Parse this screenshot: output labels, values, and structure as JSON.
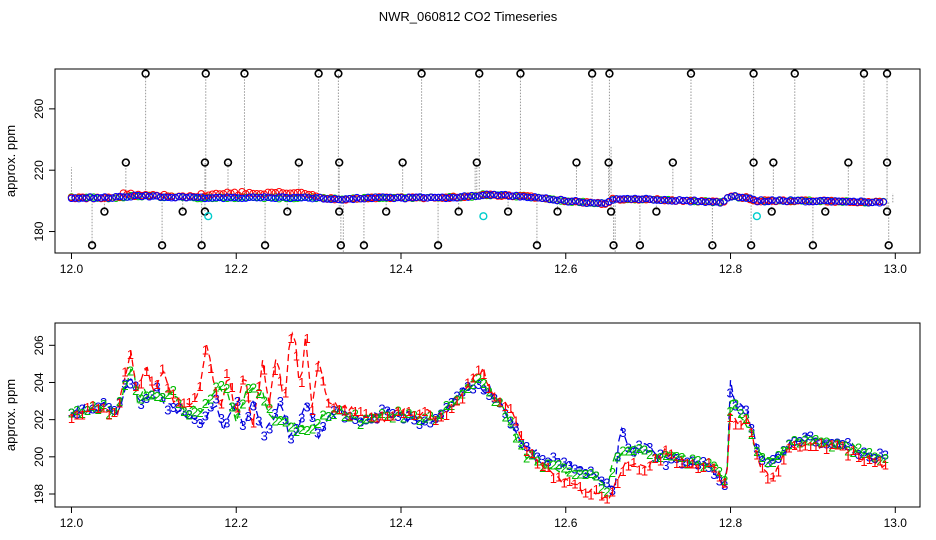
{
  "title": "NWR_060812  CO2 Timeseries",
  "chart_data": [
    {
      "type": "scatter",
      "name": "top-panel",
      "xlabel": "",
      "ylabel": "approx. ppm",
      "xlim": [
        11.98,
        13.03
      ],
      "ylim": [
        166,
        286
      ],
      "xticks": [
        12.0,
        12.2,
        12.4,
        12.6,
        12.8,
        13.0
      ],
      "xtick_labels": [
        "12.0",
        "12.2",
        "12.4",
        "12.6",
        "12.8",
        "13.0"
      ],
      "yticks": [
        180,
        220,
        260
      ],
      "ytick_labels": [
        "180",
        "220",
        "260"
      ],
      "colors": {
        "series1": "#ff0000",
        "series2": "#00cc00",
        "series3": "#0000ff",
        "spike": "#000000",
        "cyan": "#00cccc",
        "vline": "#999999"
      },
      "baseline": {
        "x": [
          12.0,
          12.05,
          12.07,
          12.1,
          12.15,
          12.2,
          12.25,
          12.3,
          12.33,
          12.36,
          12.4,
          12.45,
          12.49,
          12.5,
          12.55,
          12.6,
          12.65,
          12.655,
          12.7,
          12.75,
          12.79,
          12.8,
          12.82,
          12.83,
          12.9,
          12.99
        ],
        "y": [
          202,
          202,
          203,
          203,
          202,
          202,
          202,
          202,
          201,
          202,
          202,
          202,
          203,
          204,
          203,
          200,
          198,
          201,
          201,
          200,
          199,
          203,
          202,
          200,
          200,
          199
        ]
      },
      "series1_bumps": {
        "x": [
          12.07,
          12.1,
          12.14,
          12.17,
          12.2,
          12.23,
          12.26,
          12.29
        ],
        "y": [
          204,
          204,
          203,
          205,
          205,
          205,
          206,
          204
        ]
      },
      "spikes_high": {
        "x": [
          12.09,
          12.163,
          12.21,
          12.3,
          12.324,
          12.425,
          12.495,
          12.545,
          12.632,
          12.653,
          12.752,
          12.828,
          12.878,
          12.962,
          12.99
        ],
        "y": [
          283,
          283,
          283,
          283,
          283,
          283,
          283,
          283,
          283,
          283,
          283,
          283,
          283,
          283,
          283
        ]
      },
      "spikes_mid": {
        "x": [
          12.066,
          12.162,
          12.19,
          12.276,
          12.325,
          12.402,
          12.492,
          12.613,
          12.652,
          12.73,
          12.828,
          12.852,
          12.943,
          12.99
        ],
        "y": [
          225,
          225,
          225,
          225,
          225,
          225,
          225,
          225,
          225,
          225,
          225,
          225,
          225,
          225
        ]
      },
      "spikes_low1": {
        "x": [
          12.04,
          12.135,
          12.162,
          12.262,
          12.325,
          12.382,
          12.47,
          12.53,
          12.59,
          12.655,
          12.71,
          12.85,
          12.915,
          12.99
        ],
        "y": [
          193,
          193,
          193,
          193,
          193,
          193,
          193,
          193,
          193,
          193,
          193,
          193,
          193,
          193
        ]
      },
      "spikes_low2": {
        "x": [
          12.025,
          12.11,
          12.158,
          12.235,
          12.327,
          12.355,
          12.445,
          12.565,
          12.658,
          12.69,
          12.778,
          12.825,
          12.9,
          12.992
        ],
        "y": [
          171,
          171,
          171,
          171,
          171,
          171,
          171,
          171,
          171,
          171,
          171,
          171,
          171,
          171
        ]
      },
      "cyan_points": {
        "x": [
          12.166,
          12.5,
          12.832
        ],
        "y": [
          190,
          190,
          190
        ]
      }
    },
    {
      "type": "line",
      "name": "bottom-panel",
      "xlabel": "",
      "ylabel": "approx. ppm",
      "xlim": [
        11.98,
        13.03
      ],
      "ylim": [
        197.3,
        207.2
      ],
      "xticks": [
        12.0,
        12.2,
        12.4,
        12.6,
        12.8,
        13.0
      ],
      "xtick_labels": [
        "12.0",
        "12.2",
        "12.4",
        "12.6",
        "12.8",
        "13.0"
      ],
      "yticks": [
        198,
        200,
        202,
        204,
        206
      ],
      "ytick_labels": [
        "198",
        "200",
        "202",
        "204",
        "206"
      ],
      "series": [
        {
          "name": "1",
          "color": "#ff0000",
          "x": [
            12.0,
            12.02,
            12.04,
            12.055,
            12.065,
            12.072,
            12.08,
            12.09,
            12.1,
            12.11,
            12.125,
            12.14,
            12.155,
            12.165,
            12.172,
            12.18,
            12.19,
            12.2,
            12.21,
            12.22,
            12.232,
            12.24,
            12.25,
            12.258,
            12.265,
            12.27,
            12.278,
            12.285,
            12.292,
            12.3,
            12.31,
            12.32,
            12.35,
            12.38,
            12.4,
            12.42,
            12.45,
            12.48,
            12.49,
            12.5,
            12.51,
            12.53,
            12.55,
            12.57,
            12.6,
            12.62,
            12.64,
            12.65,
            12.67,
            12.7,
            12.72,
            12.75,
            12.78,
            12.795,
            12.8,
            12.81,
            12.82,
            12.835,
            12.85,
            12.87,
            12.9,
            12.93,
            12.96,
            12.99
          ],
          "y": [
            202.2,
            202.6,
            202.5,
            202.3,
            204.5,
            205.6,
            203.5,
            205.0,
            203.5,
            204.6,
            203.0,
            202.8,
            203.3,
            206.3,
            204.0,
            202.5,
            204.7,
            202.3,
            204.5,
            201.8,
            205.0,
            203.0,
            205.5,
            202.5,
            206.2,
            206.7,
            203.5,
            206.8,
            202.5,
            205.4,
            203.0,
            202.7,
            202.3,
            202.0,
            202.4,
            202.5,
            202.0,
            203.7,
            204.4,
            204.6,
            203.5,
            202.8,
            200.5,
            199.5,
            198.6,
            198.2,
            198.0,
            197.6,
            199.5,
            199.5,
            200.2,
            199.6,
            199.5,
            198.3,
            202.5,
            201.5,
            202.2,
            199.8,
            198.7,
            200.5,
            200.7,
            200.5,
            200.0,
            199.5
          ]
        },
        {
          "name": "2",
          "color": "#00bb00",
          "x": [
            12.0,
            12.02,
            12.04,
            12.055,
            12.065,
            12.075,
            12.08,
            12.09,
            12.1,
            12.12,
            12.14,
            12.16,
            12.175,
            12.19,
            12.2,
            12.215,
            12.23,
            12.245,
            12.26,
            12.275,
            12.29,
            12.31,
            12.33,
            12.35,
            12.38,
            12.41,
            12.44,
            12.47,
            12.49,
            12.51,
            12.53,
            12.55,
            12.57,
            12.6,
            12.63,
            12.65,
            12.66,
            12.68,
            12.7,
            12.73,
            12.76,
            12.79,
            12.795,
            12.8,
            12.81,
            12.82,
            12.835,
            12.85,
            12.88,
            12.91,
            12.94,
            12.97,
            12.99
          ],
          "y": [
            202.2,
            202.5,
            202.6,
            202.4,
            204.0,
            204.8,
            203.0,
            203.6,
            203.0,
            203.6,
            202.4,
            202.7,
            203.7,
            203.5,
            202.1,
            203.7,
            203.5,
            202.0,
            201.8,
            201.6,
            201.5,
            202.3,
            202.4,
            202.0,
            202.3,
            202.2,
            202.0,
            203.4,
            204.2,
            203.5,
            202.0,
            200.2,
            199.7,
            199.3,
            199.0,
            198.3,
            200.0,
            200.3,
            200.2,
            200.0,
            199.7,
            199.2,
            198.1,
            203.2,
            202.3,
            201.8,
            200.0,
            199.7,
            201.0,
            200.9,
            200.6,
            200.1,
            199.9
          ]
        },
        {
          "name": "3",
          "color": "#0000dd",
          "x": [
            12.0,
            12.02,
            12.04,
            12.055,
            12.065,
            12.075,
            12.085,
            12.095,
            12.105,
            12.115,
            12.13,
            12.145,
            12.16,
            12.175,
            12.185,
            12.2,
            12.21,
            12.22,
            12.235,
            12.245,
            12.255,
            12.265,
            12.275,
            12.285,
            12.3,
            12.315,
            12.33,
            12.35,
            12.38,
            12.41,
            12.44,
            12.47,
            12.49,
            12.5,
            12.51,
            12.53,
            12.55,
            12.57,
            12.6,
            12.62,
            12.64,
            12.66,
            12.665,
            12.68,
            12.7,
            12.72,
            12.75,
            12.78,
            12.795,
            12.8,
            12.805,
            12.82,
            12.835,
            12.85,
            12.88,
            12.91,
            12.94,
            12.97,
            12.99
          ],
          "y": [
            202.4,
            202.6,
            202.7,
            202.2,
            203.8,
            204.0,
            202.8,
            203.3,
            203.8,
            202.8,
            202.5,
            202.1,
            201.9,
            203.0,
            201.4,
            203.0,
            201.4,
            203.0,
            201.2,
            202.1,
            203.0,
            201.1,
            201.5,
            202.8,
            201.2,
            202.3,
            202.4,
            202.0,
            202.4,
            202.1,
            201.8,
            203.4,
            204.0,
            203.6,
            203.5,
            202.2,
            200.5,
            200.0,
            199.6,
            199.4,
            198.8,
            198.2,
            201.7,
            200.4,
            200.5,
            199.8,
            199.9,
            199.3,
            198.3,
            204.0,
            203.0,
            202.5,
            200.0,
            199.8,
            201.0,
            200.9,
            200.6,
            200.1,
            200.1
          ]
        }
      ]
    }
  ]
}
